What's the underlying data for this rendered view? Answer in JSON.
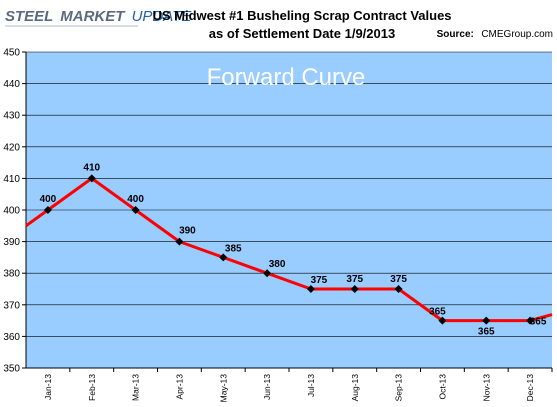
{
  "brand": {
    "word1": "STEEL",
    "word2": "MARKET",
    "word3": "UPDATE"
  },
  "header": {
    "title_line1": "US Midwest #1 Busheling Scrap Contract Values",
    "title_line2": "as of Settlement Date 1/9/2013",
    "source_label": "Source:",
    "source_value": "CMEGroup.com"
  },
  "chart_data": {
    "type": "line",
    "title": "Forward Curve",
    "categories": [
      "Jan-13",
      "Feb-13",
      "Mar-13",
      "Apr-13",
      "May-13",
      "Jun-13",
      "Jul-13",
      "Aug-13",
      "Sep-13",
      "Oct-13",
      "Nov-13",
      "Dec-13"
    ],
    "series": [
      {
        "values": [
          400,
          410,
          400,
          390,
          385,
          380,
          375,
          375,
          375,
          365,
          365,
          365
        ]
      }
    ],
    "data_labels": [
      "400",
      "410",
      "400",
      "390",
      "385",
      "380",
      "375",
      "375",
      "375",
      "365",
      "365",
      "365"
    ],
    "ylim": [
      350,
      450
    ],
    "y_ticks": [
      350,
      360,
      370,
      380,
      390,
      400,
      410,
      420,
      430,
      440,
      450
    ],
    "grid": true,
    "plot_background": "#99ccff",
    "line_color": "#ff0000",
    "marker_color": "#000000"
  }
}
